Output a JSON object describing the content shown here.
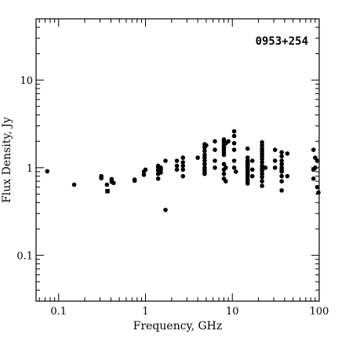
{
  "chart_data": {
    "type": "scatter",
    "title": "",
    "annotation": "0953+254",
    "xlabel": "Frequency, GHz",
    "ylabel": "Flux Density, Jy",
    "x_scale": "log",
    "y_scale": "log",
    "xlim": [
      0.055,
      100
    ],
    "ylim": [
      0.03,
      50
    ],
    "x_ticks": [
      {
        "value": 0.1,
        "label": "0.1"
      },
      {
        "value": 1,
        "label": "1"
      },
      {
        "value": 10,
        "label": "10"
      },
      {
        "value": 100,
        "label": "100"
      }
    ],
    "y_ticks": [
      {
        "value": 0.1,
        "label": "0.1"
      },
      {
        "value": 1,
        "label": "1"
      },
      {
        "value": 10,
        "label": "10"
      }
    ],
    "grid": false,
    "legend": "none",
    "marker_color": "#000000",
    "series": [
      {
        "marker": "circle",
        "points": [
          [
            0.074,
            0.91
          ],
          [
            0.151,
            0.64
          ],
          [
            0.31,
            0.8
          ],
          [
            0.31,
            0.76
          ],
          [
            0.36,
            0.64
          ],
          [
            0.408,
            0.74
          ],
          [
            0.408,
            0.69
          ],
          [
            0.43,
            0.67
          ],
          [
            0.75,
            0.73
          ],
          [
            0.75,
            0.71
          ],
          [
            0.96,
            0.9
          ],
          [
            0.96,
            0.83
          ],
          [
            1.0,
            0.95
          ],
          [
            1.4,
            1.05
          ],
          [
            1.4,
            1.0
          ],
          [
            1.4,
            0.93
          ],
          [
            1.4,
            0.85
          ],
          [
            1.4,
            0.75
          ],
          [
            1.5,
            1.0
          ],
          [
            1.5,
            0.95
          ],
          [
            1.5,
            0.88
          ],
          [
            1.7,
            1.2
          ],
          [
            1.7,
            0.33
          ],
          [
            2.3,
            1.2
          ],
          [
            2.3,
            1.05
          ],
          [
            2.3,
            0.95
          ],
          [
            2.7,
            1.3
          ],
          [
            2.7,
            1.15
          ],
          [
            2.7,
            1.05
          ],
          [
            2.7,
            0.95
          ],
          [
            2.7,
            0.8
          ],
          [
            4.0,
            1.3
          ],
          [
            4.8,
            1.85
          ],
          [
            4.8,
            1.7
          ],
          [
            4.8,
            1.55
          ],
          [
            4.8,
            1.4
          ],
          [
            4.8,
            1.3
          ],
          [
            4.8,
            1.2
          ],
          [
            4.8,
            1.1
          ],
          [
            4.8,
            1.0
          ],
          [
            4.8,
            0.95
          ],
          [
            4.8,
            0.9
          ],
          [
            4.8,
            0.85
          ],
          [
            5.0,
            1.8
          ],
          [
            6.3,
            2.0
          ],
          [
            6.3,
            1.6
          ],
          [
            6.3,
            1.2
          ],
          [
            6.3,
            1.0
          ],
          [
            8.0,
            2.1
          ],
          [
            8.0,
            2.0
          ],
          [
            8.0,
            1.9
          ],
          [
            8.0,
            1.8
          ],
          [
            8.0,
            1.7
          ],
          [
            8.0,
            1.6
          ],
          [
            8.0,
            1.5
          ],
          [
            8.0,
            1.4
          ],
          [
            8.0,
            1.1
          ],
          [
            8.0,
            0.95
          ],
          [
            8.0,
            0.85
          ],
          [
            8.0,
            0.75
          ],
          [
            8.4,
            1.9
          ],
          [
            8.4,
            1.0
          ],
          [
            8.4,
            0.7
          ],
          [
            9.0,
            2.0
          ],
          [
            10.5,
            2.6
          ],
          [
            10.5,
            2.3
          ],
          [
            10.5,
            1.9
          ],
          [
            10.5,
            1.6
          ],
          [
            10.5,
            1.2
          ],
          [
            10.5,
            1.0
          ],
          [
            11.0,
            0.9
          ],
          [
            15.0,
            1.65
          ],
          [
            15.0,
            1.3
          ],
          [
            15.0,
            1.2
          ],
          [
            15.0,
            1.15
          ],
          [
            15.0,
            1.1
          ],
          [
            15.0,
            1.05
          ],
          [
            15.0,
            1.0
          ],
          [
            15.0,
            0.95
          ],
          [
            15.0,
            0.9
          ],
          [
            15.0,
            0.85
          ],
          [
            15.0,
            0.8
          ],
          [
            15.0,
            0.75
          ],
          [
            15.0,
            0.7
          ],
          [
            15.0,
            0.66
          ],
          [
            17.0,
            1.2
          ],
          [
            17.0,
            0.95
          ],
          [
            17.0,
            0.8
          ],
          [
            22.0,
            1.95
          ],
          [
            22.0,
            1.8
          ],
          [
            22.0,
            1.65
          ],
          [
            22.0,
            1.55
          ],
          [
            22.0,
            1.45
          ],
          [
            22.0,
            1.35
          ],
          [
            22.0,
            1.25
          ],
          [
            22.0,
            1.15
          ],
          [
            22.0,
            1.05
          ],
          [
            22.0,
            0.98
          ],
          [
            22.0,
            0.92
          ],
          [
            22.0,
            0.85
          ],
          [
            22.0,
            0.78
          ],
          [
            22.0,
            0.7
          ],
          [
            22.0,
            0.62
          ],
          [
            24.0,
            1.0
          ],
          [
            31.0,
            1.6
          ],
          [
            31.0,
            1.2
          ],
          [
            31.0,
            1.0
          ],
          [
            37.0,
            1.5
          ],
          [
            37.0,
            1.35
          ],
          [
            37.0,
            1.2
          ],
          [
            37.0,
            1.1
          ],
          [
            37.0,
            1.0
          ],
          [
            37.0,
            0.95
          ],
          [
            37.0,
            0.9
          ],
          [
            37.0,
            0.8
          ],
          [
            37.0,
            0.7
          ],
          [
            37.0,
            0.55
          ],
          [
            43.0,
            1.45
          ],
          [
            43.0,
            0.8
          ],
          [
            86.0,
            1.6
          ],
          [
            86.0,
            0.95
          ],
          [
            86.0,
            0.75
          ],
          [
            90.0,
            1.3
          ],
          [
            90.0,
            1.0
          ],
          [
            95.0,
            1.2
          ],
          [
            95.0,
            0.6
          ],
          [
            98.0,
            0.52
          ]
        ]
      },
      {
        "marker": "square",
        "points": [
          [
            0.365,
            0.54
          ]
        ]
      }
    ]
  }
}
